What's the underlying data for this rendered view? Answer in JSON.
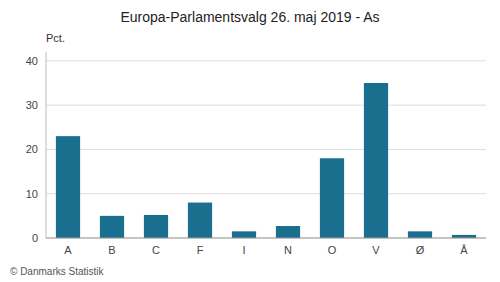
{
  "chart_data": {
    "type": "bar",
    "title": "Europa-Parlamentsvalg 26. maj 2019 - As",
    "ylabel": "Pct.",
    "annotations": [
      "© Danmarks Statistik"
    ],
    "categories": [
      "A",
      "B",
      "C",
      "F",
      "I",
      "N",
      "O",
      "V",
      "Ø",
      "Å"
    ],
    "values": [
      23.0,
      5.0,
      5.2,
      8.0,
      1.5,
      2.7,
      18.0,
      35.0,
      1.5,
      0.7
    ],
    "color": "#1a6e8e",
    "ylim": [
      0,
      42
    ],
    "yticks": [
      0,
      10,
      20,
      30,
      40
    ],
    "grid": true
  }
}
